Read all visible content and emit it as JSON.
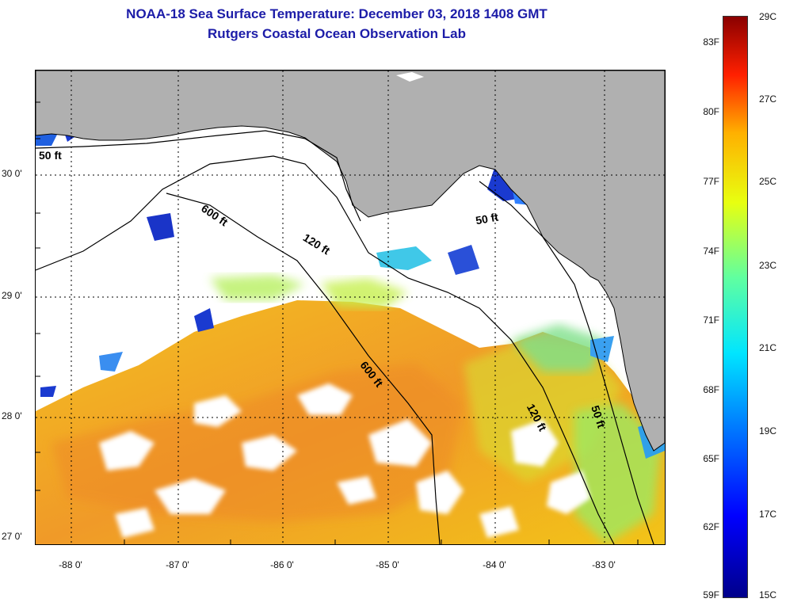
{
  "header": {
    "title_line1": "NOAA-18 Sea Surface Temperature:  December 03, 2018 1408 GMT",
    "title_line2": "Rutgers Coastal Ocean Observation Lab"
  },
  "map": {
    "lat_labels": [
      "30 0'",
      "29 0'",
      "28 0'",
      "27 0'"
    ],
    "lon_labels": [
      "-88 0'",
      "-87 0'",
      "-86 0'",
      "-85 0'",
      "-84 0'",
      "-83 0'"
    ],
    "contour_labels": [
      "50 ft",
      "600 ft",
      "120 ft",
      "50 ft",
      "600 ft",
      "120 ft",
      "50 ft"
    ],
    "colors": {
      "land": "#b0b0b0",
      "cloud": "#ffffff",
      "contour": "#000000"
    }
  },
  "colorbar": {
    "fahrenheit": [
      "83F",
      "80F",
      "77F",
      "74F",
      "71F",
      "68F",
      "65F",
      "62F",
      "59F"
    ],
    "celsius": [
      "29C",
      "27C",
      "25C",
      "23C",
      "21C",
      "19C",
      "17C",
      "15C"
    ]
  }
}
